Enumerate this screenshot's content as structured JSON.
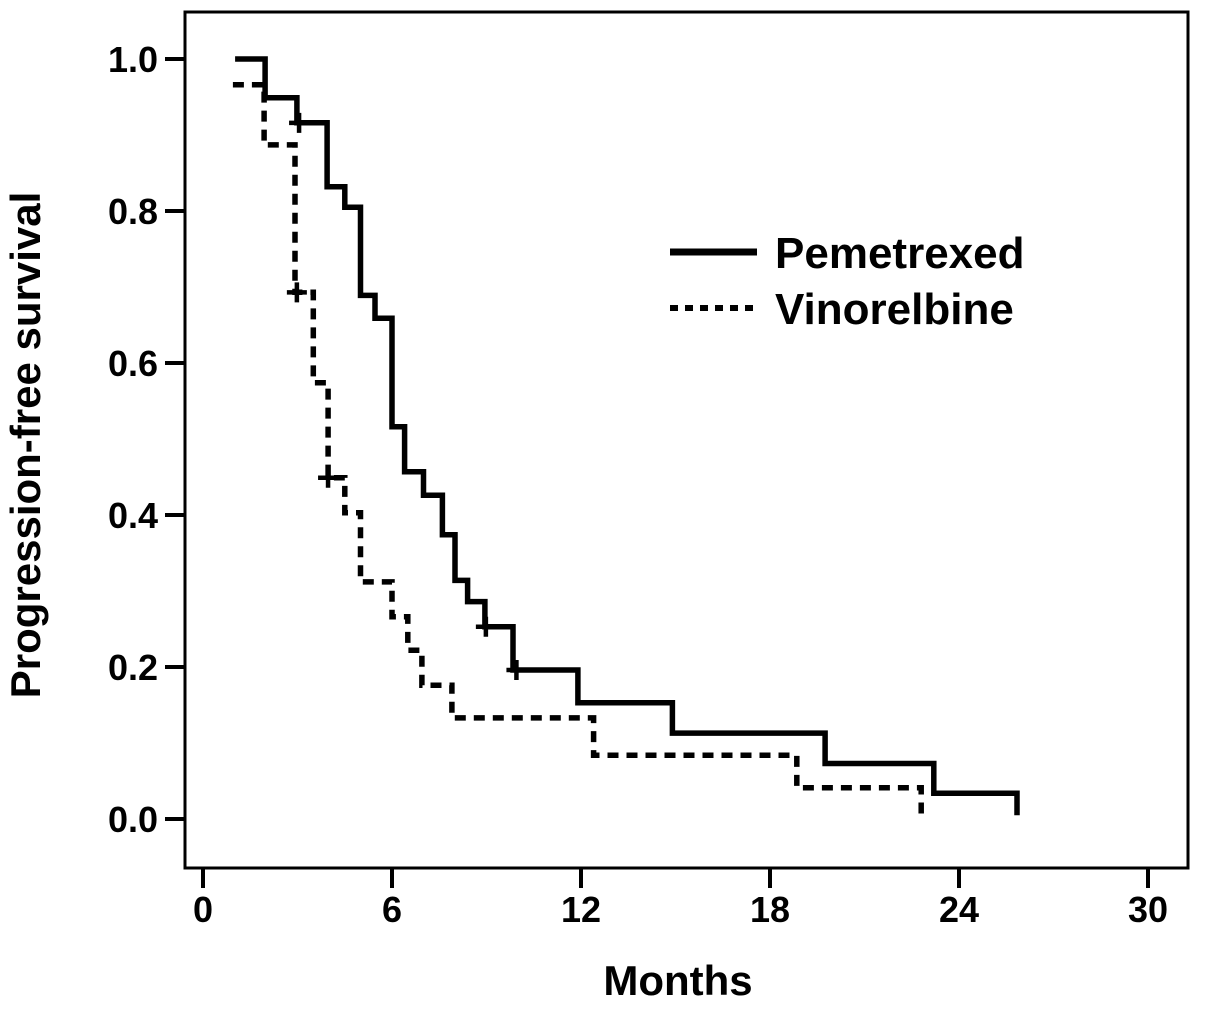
{
  "chart_data": {
    "type": "line",
    "variant": "kaplan-meier-step",
    "title": "",
    "xlabel": "Months",
    "ylabel": "Progression-free survival",
    "xlim": [
      0,
      30
    ],
    "ylim": [
      0.0,
      1.0
    ],
    "x_ticks": [
      0,
      6,
      12,
      18,
      24,
      30
    ],
    "y_ticks": [
      0.0,
      0.2,
      0.4,
      0.6,
      0.8,
      1.0
    ],
    "grid": false,
    "legend": {
      "position": "inside-upper-right"
    },
    "series": [
      {
        "name": "Pemetrexed",
        "line_style": "solid",
        "color": "#000000",
        "step_points": [
          [
            1.02,
            1.0
          ],
          [
            1.97,
            0.949
          ],
          [
            2.98,
            0.916
          ],
          [
            3.94,
            0.832
          ],
          [
            4.5,
            0.805
          ],
          [
            5.0,
            0.689
          ],
          [
            5.46,
            0.659
          ],
          [
            6.0,
            0.516
          ],
          [
            6.4,
            0.457
          ],
          [
            7.0,
            0.426
          ],
          [
            7.6,
            0.374
          ],
          [
            8.0,
            0.314
          ],
          [
            8.4,
            0.286
          ],
          [
            8.95,
            0.253
          ],
          [
            9.84,
            0.196
          ],
          [
            11.9,
            0.153
          ],
          [
            14.9,
            0.113
          ],
          [
            19.75,
            0.073
          ],
          [
            23.2,
            0.034
          ],
          [
            25.84,
            0.005
          ]
        ],
        "censor_marks": [
          [
            3.05,
            0.916
          ],
          [
            8.98,
            0.253
          ],
          [
            9.95,
            0.196
          ]
        ]
      },
      {
        "name": "Vinorelbine",
        "line_style": "dotted",
        "color": "#000000",
        "step_points": [
          [
            0.95,
            0.966
          ],
          [
            1.94,
            0.887
          ],
          [
            2.92,
            0.693
          ],
          [
            3.5,
            0.574
          ],
          [
            3.97,
            0.449
          ],
          [
            4.5,
            0.403
          ],
          [
            5.0,
            0.312
          ],
          [
            6.0,
            0.266
          ],
          [
            6.5,
            0.222
          ],
          [
            6.95,
            0.176
          ],
          [
            7.9,
            0.133
          ],
          [
            12.4,
            0.084
          ],
          [
            18.85,
            0.041
          ],
          [
            22.8,
            0.005
          ]
        ],
        "censor_marks": [
          [
            2.98,
            0.693
          ],
          [
            3.97,
            0.449
          ]
        ]
      }
    ]
  },
  "colors": {
    "background": "#ffffff",
    "frame": "#000000",
    "line": "#000000"
  }
}
